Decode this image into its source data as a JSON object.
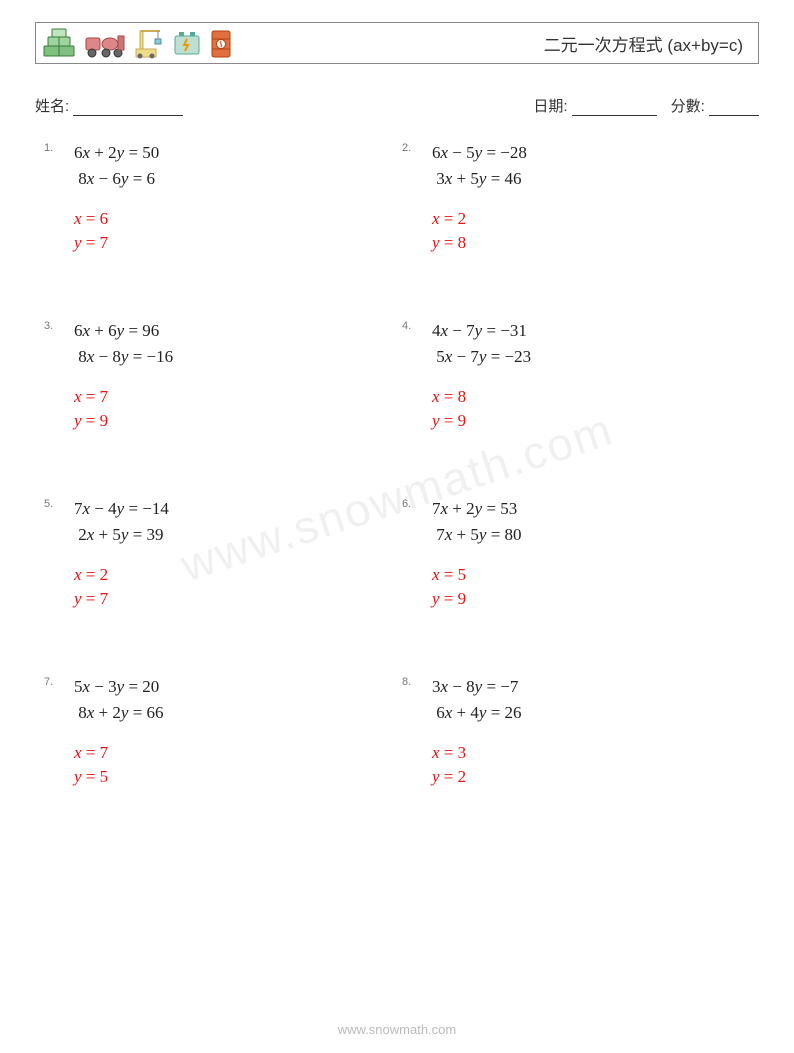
{
  "title": "二元一次方程式 (ax+by=c)",
  "labels": {
    "name": "姓名:",
    "date": "日期:",
    "score": "分數:"
  },
  "equation_color": "#222222",
  "answer_color": "#ee1111",
  "problems": [
    {
      "n": "1.",
      "eq1": "6x + 2y = 50",
      "eq2": "8x − 6y = 6",
      "ax": "x = 6",
      "ay": "y = 7"
    },
    {
      "n": "2.",
      "eq1": "6x − 5y = −28",
      "eq2": "3x + 5y = 46",
      "ax": "x = 2",
      "ay": "y = 8"
    },
    {
      "n": "3.",
      "eq1": "6x + 6y = 96",
      "eq2": "8x − 8y = −16",
      "ax": "x = 7",
      "ay": "y = 9"
    },
    {
      "n": "4.",
      "eq1": "4x − 7y = −31",
      "eq2": "5x − 7y = −23",
      "ax": "x = 8",
      "ay": "y = 9"
    },
    {
      "n": "5.",
      "eq1": "7x − 4y = −14",
      "eq2": "2x + 5y = 39",
      "ax": "x = 2",
      "ay": "y = 7"
    },
    {
      "n": "6.",
      "eq1": "7x + 2y = 53",
      "eq2": "7x + 5y = 80",
      "ax": "x = 5",
      "ay": "y = 9"
    },
    {
      "n": "7.",
      "eq1": "5x − 3y = 20",
      "eq2": "8x + 2y = 66",
      "ax": "x = 7",
      "ay": "y = 5"
    },
    {
      "n": "8.",
      "eq1": "3x − 8y = −7",
      "eq2": "6x + 4y = 26",
      "ax": "x = 3",
      "ay": "y = 2"
    }
  ],
  "footer": "www.snowmath.com",
  "watermark": "www.snowmath.com"
}
